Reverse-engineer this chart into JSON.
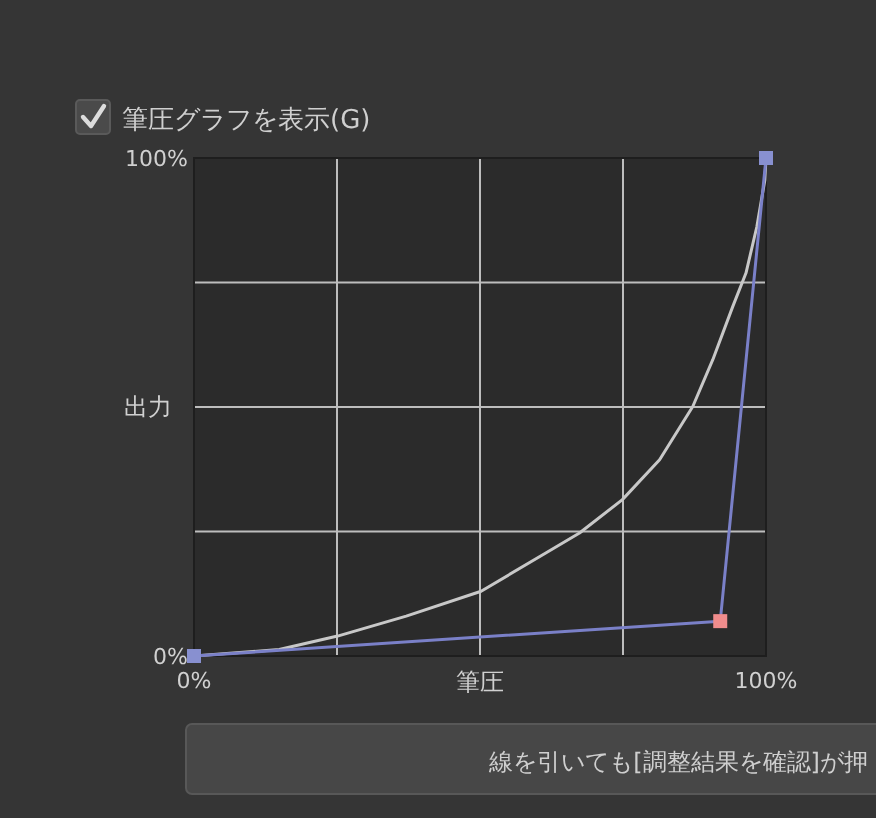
{
  "chart_data": {
    "type": "line",
    "title": "筆圧グラフを表示(G)",
    "xlabel": "筆圧",
    "ylabel": "出力",
    "annotations": [
      "線を引いても[調整結果を確認]が押"
    ],
    "xlim": [
      0,
      100
    ],
    "ylim": [
      0,
      100
    ],
    "xticks": [
      {
        "value": 0,
        "label": "0%"
      },
      {
        "value": 25,
        "label": null
      },
      {
        "value": 50,
        "label": null
      },
      {
        "value": 75,
        "label": null
      },
      {
        "value": 100,
        "label": "100%"
      }
    ],
    "yticks": [
      {
        "value": 0,
        "label": "0%"
      },
      {
        "value": 25,
        "label": null
      },
      {
        "value": 50,
        "label": null
      },
      {
        "value": 75,
        "label": null
      },
      {
        "value": 100,
        "label": "100%"
      }
    ],
    "grid": true,
    "series": [
      {
        "color": "#c8c8c8",
        "marker": "none",
        "x": [
          0,
          14.9,
          25.1,
          37.1,
          50.2,
          61.5,
          67.4,
          74.9,
          81.4,
          87.2,
          90.7,
          94.2,
          96.5,
          98.4,
          99.8,
          100
        ],
        "values": [
          0,
          1.3,
          4.0,
          8.0,
          13.0,
          20.7,
          24.7,
          31.4,
          39.4,
          50.1,
          59.5,
          70.2,
          76.9,
          86.2,
          95.6,
          100
        ]
      },
      {
        "color": "#7a80c8",
        "marker": "square",
        "colors": [
          "#8890d0",
          "#f08c8c",
          "#8890d0"
        ],
        "x": [
          0,
          92,
          100
        ],
        "values": [
          0,
          7,
          100
        ]
      }
    ]
  }
}
